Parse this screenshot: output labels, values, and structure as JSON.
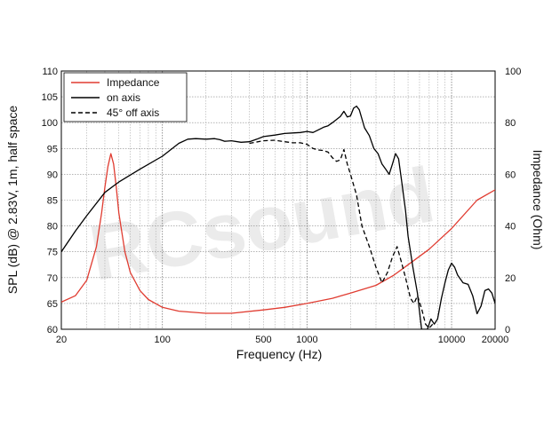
{
  "chart_data": {
    "type": "line",
    "xscale": "log",
    "xlim": [
      20,
      20000
    ],
    "ylim": [
      60,
      110
    ],
    "y2lim": [
      0,
      100
    ],
    "xlabel": "Frequency (Hz)",
    "ylabel": "SPL (dB) @ 2.83V, 1m, half space",
    "y2label": "Impedance (Ohm)",
    "x_ticks": [
      20,
      100,
      500,
      1000,
      10000,
      20000
    ],
    "x_tick_labels": [
      "20",
      "100",
      "500",
      "1000",
      "10000",
      "20000"
    ],
    "y_ticks": [
      60,
      65,
      70,
      75,
      80,
      85,
      90,
      95,
      100,
      105,
      110
    ],
    "y_tick_labels": [
      "60",
      "65",
      "70",
      "75",
      "80",
      "85",
      "90",
      "95",
      "100",
      "105",
      "110"
    ],
    "y2_ticks": [
      0,
      20,
      40,
      60,
      80,
      100
    ],
    "y2_tick_labels": [
      "0",
      "20",
      "40",
      "60",
      "80",
      "100"
    ],
    "grid": true,
    "legend_position": "top-left",
    "watermark": "RCsound",
    "series": [
      {
        "name": "Impedance",
        "axis": "right",
        "color": "#e03c31",
        "style": "solid",
        "points": [
          [
            20,
            10.5
          ],
          [
            25,
            13
          ],
          [
            30,
            19
          ],
          [
            35,
            32
          ],
          [
            38,
            45
          ],
          [
            40,
            55
          ],
          [
            42,
            63
          ],
          [
            44,
            68
          ],
          [
            46,
            64
          ],
          [
            48,
            55
          ],
          [
            50,
            45
          ],
          [
            55,
            30
          ],
          [
            60,
            22
          ],
          [
            70,
            15
          ],
          [
            80,
            11.5
          ],
          [
            100,
            8.5
          ],
          [
            130,
            7
          ],
          [
            200,
            6.2
          ],
          [
            300,
            6.2
          ],
          [
            500,
            7.5
          ],
          [
            700,
            8.5
          ],
          [
            1000,
            10
          ],
          [
            1500,
            12
          ],
          [
            2000,
            14
          ],
          [
            3000,
            17
          ],
          [
            4000,
            21
          ],
          [
            5000,
            25
          ],
          [
            7000,
            31
          ],
          [
            10000,
            39
          ],
          [
            15000,
            50
          ],
          [
            20000,
            54
          ]
        ]
      },
      {
        "name": "on axis",
        "axis": "left",
        "color": "#000000",
        "style": "solid",
        "points": [
          [
            20,
            75
          ],
          [
            25,
            79
          ],
          [
            30,
            82
          ],
          [
            40,
            86.5
          ],
          [
            50,
            88.5
          ],
          [
            70,
            91
          ],
          [
            100,
            93.5
          ],
          [
            130,
            96
          ],
          [
            150,
            96.8
          ],
          [
            170,
            96.9
          ],
          [
            200,
            96.8
          ],
          [
            230,
            96.9
          ],
          [
            250,
            96.7
          ],
          [
            270,
            96.4
          ],
          [
            300,
            96.5
          ],
          [
            350,
            96.2
          ],
          [
            400,
            96.3
          ],
          [
            450,
            96.8
          ],
          [
            500,
            97.3
          ],
          [
            600,
            97.6
          ],
          [
            700,
            97.9
          ],
          [
            800,
            98
          ],
          [
            900,
            98.1
          ],
          [
            1000,
            98.3
          ],
          [
            1100,
            98.1
          ],
          [
            1200,
            98.6
          ],
          [
            1300,
            99.1
          ],
          [
            1400,
            99.4
          ],
          [
            1500,
            100
          ],
          [
            1700,
            101.2
          ],
          [
            1800,
            102.2
          ],
          [
            1900,
            101.1
          ],
          [
            2000,
            101.3
          ],
          [
            2100,
            102.8
          ],
          [
            2200,
            103.2
          ],
          [
            2300,
            102.5
          ],
          [
            2500,
            99
          ],
          [
            2700,
            97.5
          ],
          [
            2900,
            95
          ],
          [
            3100,
            94
          ],
          [
            3300,
            92
          ],
          [
            3500,
            91
          ],
          [
            3700,
            90
          ],
          [
            3900,
            92
          ],
          [
            4100,
            94
          ],
          [
            4300,
            93
          ],
          [
            4500,
            89
          ],
          [
            4800,
            83
          ],
          [
            5000,
            78
          ],
          [
            5400,
            72
          ],
          [
            5800,
            67
          ],
          [
            6000,
            63.5
          ],
          [
            6200,
            60
          ],
          [
            6800,
            60
          ],
          [
            7200,
            62
          ],
          [
            7600,
            61
          ],
          [
            8000,
            62
          ],
          [
            8500,
            66
          ],
          [
            9000,
            69
          ],
          [
            9500,
            71.5
          ],
          [
            10000,
            72.8
          ],
          [
            10500,
            72
          ],
          [
            11000,
            70.5
          ],
          [
            12000,
            69
          ],
          [
            13000,
            68.7
          ],
          [
            14000,
            66.5
          ],
          [
            15000,
            63
          ],
          [
            16000,
            64.5
          ],
          [
            17000,
            67.5
          ],
          [
            18000,
            67.8
          ],
          [
            19000,
            67
          ],
          [
            20000,
            65
          ]
        ]
      },
      {
        "name": "45° off axis",
        "axis": "left",
        "color": "#000000",
        "style": "dashed",
        "points": [
          [
            400,
            96
          ],
          [
            500,
            96.5
          ],
          [
            600,
            96.6
          ],
          [
            700,
            96.3
          ],
          [
            800,
            96.1
          ],
          [
            900,
            96.1
          ],
          [
            1000,
            95.8
          ],
          [
            1100,
            95
          ],
          [
            1200,
            94.7
          ],
          [
            1300,
            94.6
          ],
          [
            1400,
            94.3
          ],
          [
            1500,
            93.2
          ],
          [
            1600,
            92.5
          ],
          [
            1700,
            92.8
          ],
          [
            1800,
            94.8
          ],
          [
            1900,
            92
          ],
          [
            2000,
            90
          ],
          [
            2200,
            86
          ],
          [
            2400,
            80
          ],
          [
            2700,
            76
          ],
          [
            3000,
            72
          ],
          [
            3300,
            69
          ],
          [
            3600,
            71
          ],
          [
            3900,
            74
          ],
          [
            4200,
            76
          ],
          [
            4500,
            73
          ],
          [
            4800,
            70
          ],
          [
            5200,
            66
          ],
          [
            5500,
            65
          ],
          [
            5800,
            66.5
          ],
          [
            6200,
            64
          ],
          [
            6600,
            61
          ],
          [
            7000,
            60.2
          ],
          [
            7400,
            61
          ]
        ]
      }
    ]
  }
}
